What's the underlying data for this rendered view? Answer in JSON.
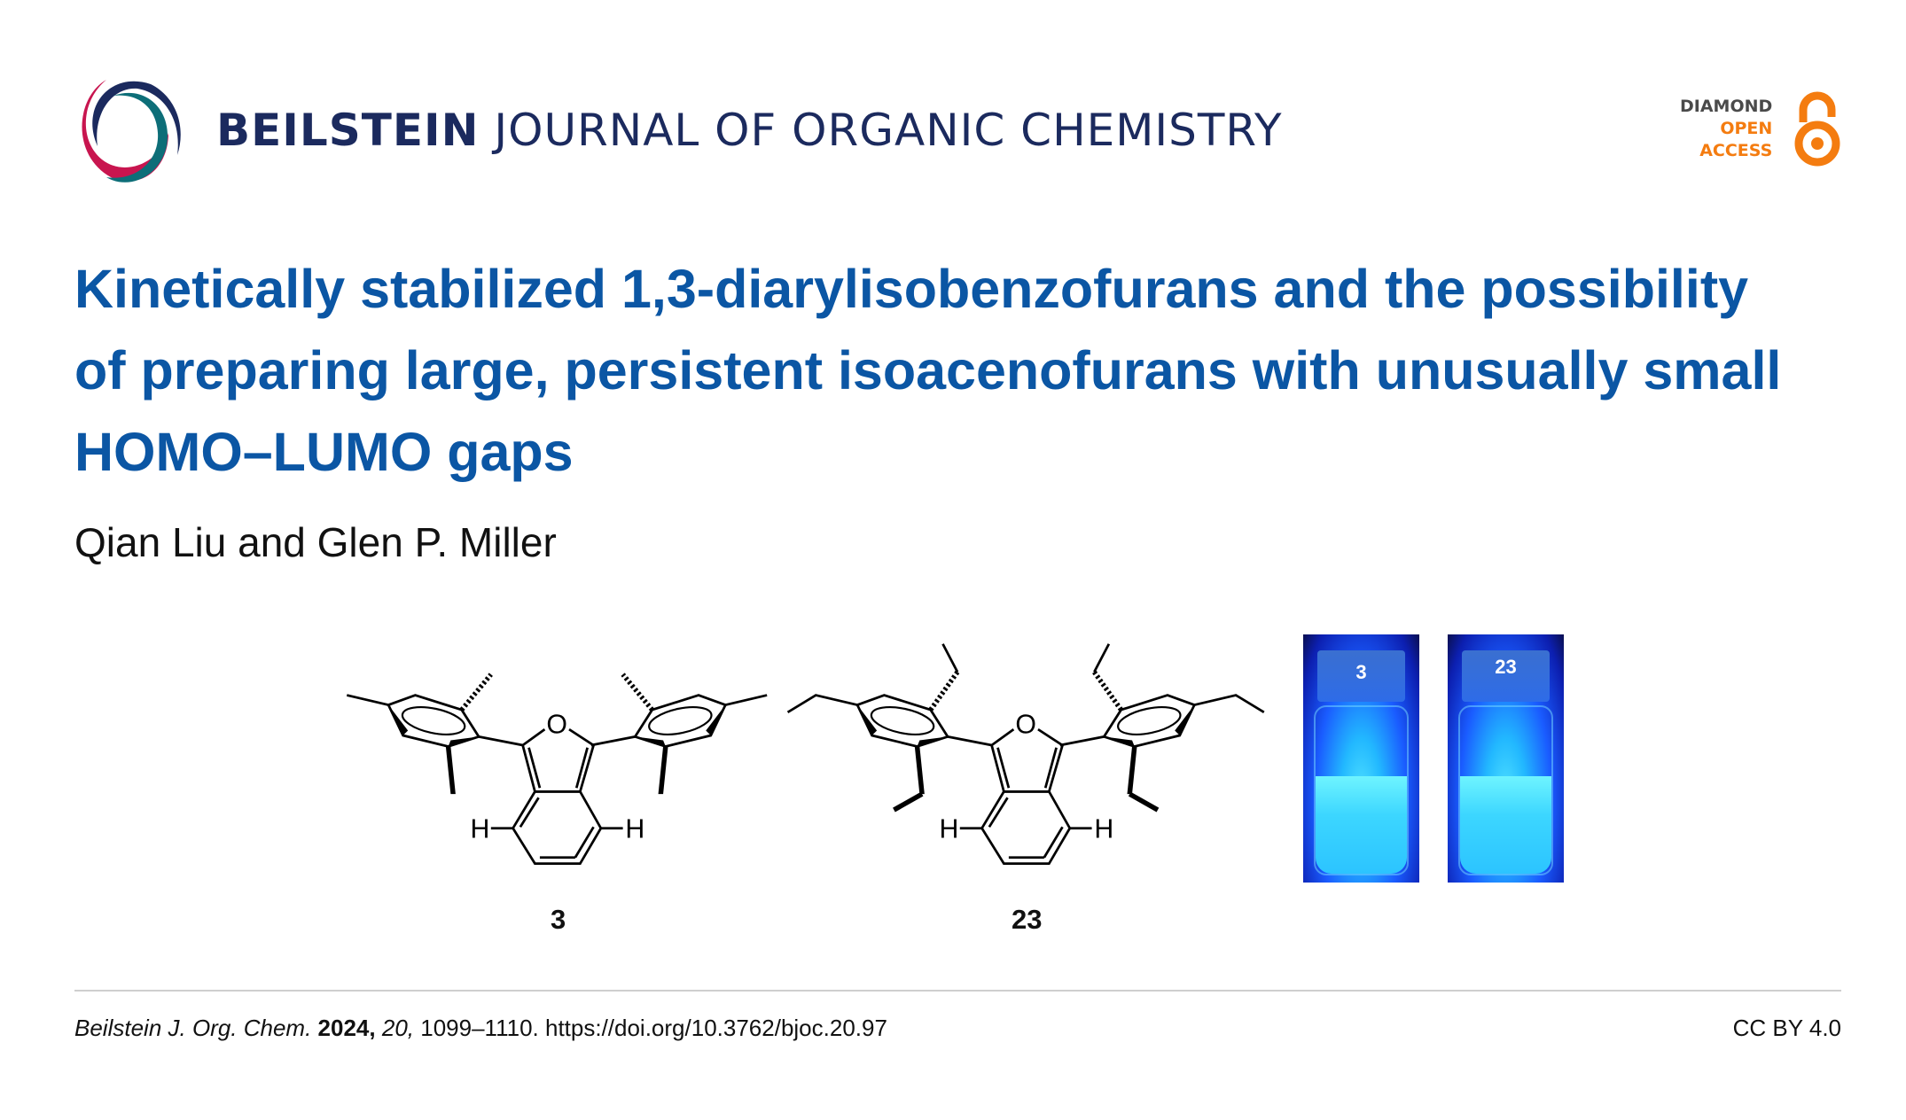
{
  "header": {
    "journal_bold": "BEILSTEIN",
    "journal_rest": "JOURNAL OF ORGANIC CHEMISTRY",
    "badge": {
      "line1": "DIAMOND",
      "line2": "OPEN",
      "line3": "ACCESS"
    }
  },
  "colors": {
    "title": "#0b56a4",
    "journal": "#1b2a5e",
    "open_access": "#f47c10",
    "logo_red": "#c8154f",
    "logo_teal": "#0d6e78"
  },
  "article": {
    "title": "Kinetically stabilized 1,3-diarylisobenzofurans and the possibility of preparing large, persistent isoacenofurans with unusually small HOMO–LUMO gaps",
    "authors": "Qian Liu and Glen P. Miller"
  },
  "graphic": {
    "compound_labels": [
      "3",
      "23"
    ],
    "atom_O": "O",
    "atom_H": "H",
    "vial_labels": [
      "3",
      "23"
    ]
  },
  "footer": {
    "journal": "Beilstein J. Org. Chem.",
    "year": "2024,",
    "volume": "20,",
    "pages_doi": "1099–1110. https://doi.org/10.3762/bjoc.20.97",
    "license": "CC BY 4.0"
  }
}
